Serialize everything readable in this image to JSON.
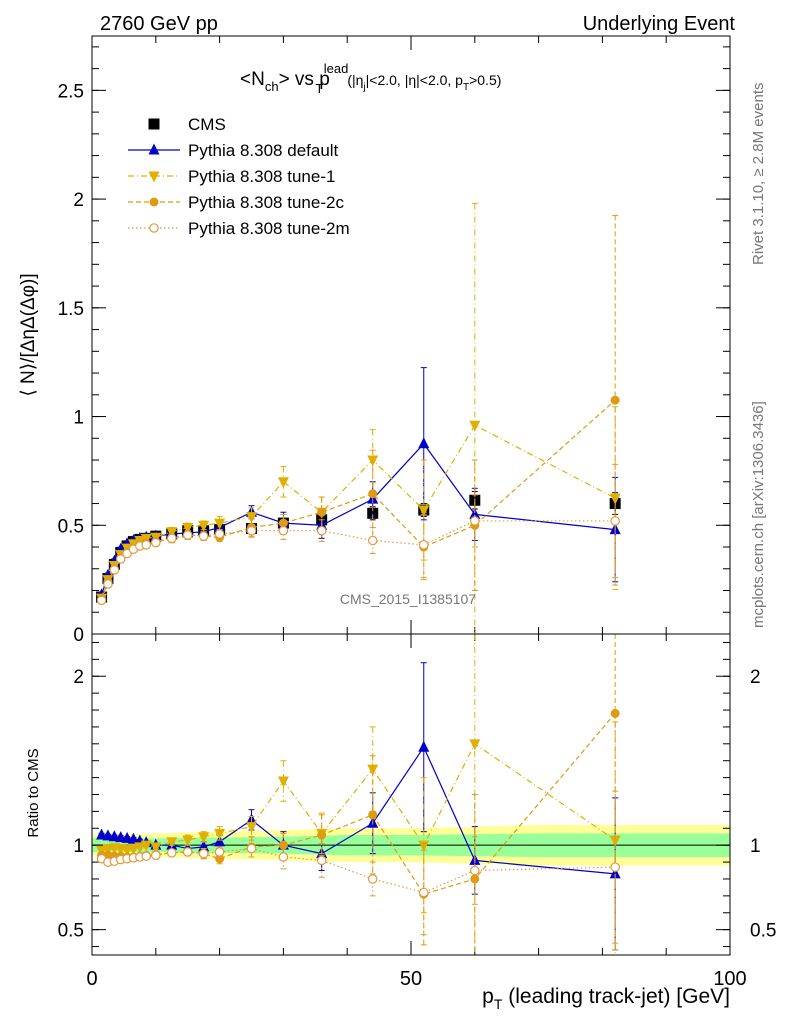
{
  "header": {
    "left": "2760 GeV pp",
    "right": "Underlying Event"
  },
  "side_labels": {
    "rivet": "Rivet 3.1.10, ≥ 2.8M events",
    "mcplots": "mcplots.cern.ch [arXiv:1306.3436]"
  },
  "watermark": "CMS_2015_I1385107",
  "colors": {
    "cms": "#000000",
    "default": "#0000cc",
    "tune1": "#e0b000",
    "tune2c": "#e09a10",
    "tune2m": "#e09a40",
    "band_inner": "#99ff99",
    "band_outer": "#ffff99"
  },
  "chart_data": [
    {
      "type": "scatter",
      "title_parts": {
        "main": "<N",
        "ch": "ch",
        "vs": "> vs p",
        "T": "T",
        "lead": "lead",
        "cuts_a": "(|η",
        "j": "j",
        "cuts_b": "|<2.0, |η|<2.0, p",
        "T2": "T",
        "cuts_c": ">0.5)"
      },
      "ylabel": "⟨ N⟩/[ΔηΔ(Δφ)]",
      "xlim": [
        0,
        100
      ],
      "ylim": [
        0,
        2.75
      ],
      "yticks": [
        {
          "v": 0,
          "label": "0"
        },
        {
          "v": 0.5,
          "label": "0.5"
        },
        {
          "v": 1,
          "label": "1"
        },
        {
          "v": 1.5,
          "label": "1.5"
        },
        {
          "v": 2,
          "label": "2"
        },
        {
          "v": 2.5,
          "label": "2.5"
        }
      ],
      "legend_position": "top-left",
      "series": [
        {
          "key": "cms",
          "name": "CMS",
          "marker": "square",
          "line": "none",
          "x": [
            1.5,
            2.5,
            3.5,
            4.5,
            5.5,
            6.5,
            7.5,
            8.5,
            10,
            12.5,
            15,
            17.5,
            20,
            25,
            30,
            36,
            44,
            52,
            60,
            82
          ],
          "y": [
            0.17,
            0.255,
            0.32,
            0.375,
            0.405,
            0.425,
            0.435,
            0.44,
            0.45,
            0.46,
            0.475,
            0.475,
            0.48,
            0.485,
            0.51,
            0.525,
            0.555,
            0.57,
            0.615,
            0.6
          ],
          "err": [
            0.01,
            0.01,
            0.01,
            0.01,
            0.01,
            0.01,
            0.01,
            0.01,
            0.01,
            0.01,
            0.01,
            0.01,
            0.01,
            0.02,
            0.02,
            0.02,
            0.03,
            0.03,
            0.04,
            0.05
          ]
        },
        {
          "key": "default",
          "name": "Pythia 8.308 default",
          "marker": "triangle-up",
          "line": "solid",
          "x": [
            1.5,
            2.5,
            3.5,
            4.5,
            5.5,
            6.5,
            7.5,
            8.5,
            10,
            12.5,
            15,
            17.5,
            20,
            25,
            30,
            36,
            44,
            52,
            60,
            82
          ],
          "y": [
            0.18,
            0.27,
            0.335,
            0.39,
            0.415,
            0.43,
            0.44,
            0.445,
            0.45,
            0.46,
            0.465,
            0.47,
            0.49,
            0.56,
            0.51,
            0.5,
            0.62,
            0.875,
            0.55,
            0.48
          ],
          "err": [
            0.01,
            0.01,
            0.01,
            0.01,
            0.01,
            0.01,
            0.01,
            0.01,
            0.01,
            0.01,
            0.02,
            0.02,
            0.02,
            0.03,
            0.05,
            0.06,
            0.08,
            0.35,
            0.12,
            0.24
          ]
        },
        {
          "key": "tune1",
          "name": "Pythia 8.308 tune-1",
          "marker": "triangle-down",
          "line": "dashdot",
          "x": [
            1.5,
            2.5,
            3.5,
            4.5,
            5.5,
            6.5,
            7.5,
            8.5,
            10,
            12.5,
            15,
            17.5,
            20,
            25,
            30,
            36,
            44,
            52,
            60,
            82
          ],
          "y": [
            0.165,
            0.25,
            0.315,
            0.365,
            0.395,
            0.415,
            0.43,
            0.44,
            0.445,
            0.47,
            0.49,
            0.5,
            0.51,
            0.54,
            0.7,
            0.56,
            0.8,
            0.57,
            0.96,
            0.625
          ],
          "err": [
            0.01,
            0.01,
            0.01,
            0.01,
            0.01,
            0.01,
            0.01,
            0.01,
            0.01,
            0.02,
            0.02,
            0.02,
            0.03,
            0.04,
            0.07,
            0.07,
            0.14,
            0.23,
            1.02,
            0.42
          ]
        },
        {
          "key": "tune2c",
          "name": "Pythia 8.308 tune-2c",
          "marker": "circle",
          "line": "dashed",
          "x": [
            1.5,
            2.5,
            3.5,
            4.5,
            5.5,
            6.5,
            7.5,
            8.5,
            10,
            12.5,
            15,
            17.5,
            20,
            25,
            30,
            36,
            44,
            52,
            60,
            82
          ],
          "y": [
            0.16,
            0.24,
            0.3,
            0.35,
            0.375,
            0.395,
            0.41,
            0.415,
            0.425,
            0.44,
            0.455,
            0.45,
            0.445,
            0.49,
            0.51,
            0.56,
            0.645,
            0.4,
            0.5,
            1.075
          ],
          "err": [
            0.01,
            0.01,
            0.01,
            0.01,
            0.01,
            0.01,
            0.01,
            0.01,
            0.01,
            0.02,
            0.02,
            0.02,
            0.02,
            0.04,
            0.04,
            0.07,
            0.2,
            0.15,
            0.3,
            0.85
          ]
        },
        {
          "key": "tune2m",
          "name": "Pythia 8.308 tune-2m",
          "marker": "circle-open",
          "line": "dotted",
          "x": [
            1.5,
            2.5,
            3.5,
            4.5,
            5.5,
            6.5,
            7.5,
            8.5,
            10,
            12.5,
            15,
            17.5,
            20,
            25,
            30,
            36,
            44,
            52,
            60,
            82
          ],
          "y": [
            0.155,
            0.23,
            0.295,
            0.345,
            0.37,
            0.39,
            0.405,
            0.41,
            0.42,
            0.44,
            0.455,
            0.45,
            0.46,
            0.475,
            0.475,
            0.475,
            0.43,
            0.41,
            0.52,
            0.52
          ],
          "err": [
            0.01,
            0.01,
            0.01,
            0.01,
            0.01,
            0.01,
            0.01,
            0.01,
            0.01,
            0.02,
            0.02,
            0.02,
            0.02,
            0.03,
            0.04,
            0.05,
            0.06,
            0.15,
            0.12,
            0.26
          ]
        }
      ]
    },
    {
      "type": "scatter",
      "ylabel": "Ratio to CMS",
      "xlabel_main": "p",
      "xlabel_sub": "T",
      "xlabel_rest": " (leading track-jet) [GeV]",
      "xlim": [
        0,
        100
      ],
      "ylim": [
        0.35,
        2.25
      ],
      "xticks": [
        {
          "v": 0,
          "label": "0"
        },
        {
          "v": 50,
          "label": "50"
        },
        {
          "v": 100,
          "label": "100"
        }
      ],
      "yticks": [
        {
          "v": 0.5,
          "label": "0.5"
        },
        {
          "v": 1,
          "label": "1"
        },
        {
          "v": 2,
          "label": "2"
        }
      ],
      "band": {
        "x": [
          0,
          10,
          20,
          30,
          40,
          50,
          60,
          70,
          80,
          90,
          100
        ],
        "inner": [
          0.04,
          0.04,
          0.045,
          0.05,
          0.06,
          0.06,
          0.065,
          0.07,
          0.07,
          0.07,
          0.07
        ],
        "outer": [
          0.06,
          0.07,
          0.08,
          0.09,
          0.1,
          0.1,
          0.11,
          0.12,
          0.12,
          0.12,
          0.12
        ]
      },
      "series": [
        {
          "key": "default",
          "x": [
            1.5,
            2.5,
            3.5,
            4.5,
            5.5,
            6.5,
            7.5,
            8.5,
            10,
            12.5,
            15,
            17.5,
            20,
            25,
            30,
            36,
            44,
            52,
            60,
            82
          ],
          "y": [
            1.06,
            1.055,
            1.05,
            1.045,
            1.04,
            1.035,
            1.025,
            1.015,
            1.0,
            1.0,
            0.98,
            0.99,
            1.02,
            1.15,
            1.0,
            0.95,
            1.13,
            1.58,
            0.91,
            0.83
          ],
          "err": [
            0.01,
            0.01,
            0.01,
            0.01,
            0.01,
            0.01,
            0.01,
            0.01,
            0.01,
            0.02,
            0.02,
            0.03,
            0.04,
            0.06,
            0.08,
            0.1,
            0.18,
            0.5,
            0.2,
            0.45
          ]
        },
        {
          "key": "tune1",
          "x": [
            1.5,
            2.5,
            3.5,
            4.5,
            5.5,
            6.5,
            7.5,
            8.5,
            10,
            12.5,
            15,
            17.5,
            20,
            25,
            30,
            36,
            44,
            52,
            60,
            82
          ],
          "y": [
            0.97,
            0.98,
            0.985,
            0.98,
            0.975,
            0.98,
            0.99,
            1.0,
            0.99,
            1.02,
            1.03,
            1.05,
            1.07,
            1.11,
            1.38,
            1.07,
            1.45,
            1.0,
            1.6,
            1.03
          ],
          "err": [
            0.01,
            0.01,
            0.01,
            0.01,
            0.01,
            0.01,
            0.01,
            0.01,
            0.01,
            0.02,
            0.03,
            0.03,
            0.04,
            0.06,
            0.12,
            0.12,
            0.25,
            0.4,
            1.6,
            0.7
          ]
        },
        {
          "key": "tune2c",
          "x": [
            1.5,
            2.5,
            3.5,
            4.5,
            5.5,
            6.5,
            7.5,
            8.5,
            10,
            12.5,
            15,
            17.5,
            20,
            25,
            30,
            36,
            44,
            52,
            60,
            82
          ],
          "y": [
            0.94,
            0.94,
            0.935,
            0.935,
            0.93,
            0.93,
            0.935,
            0.94,
            0.945,
            0.955,
            0.96,
            0.95,
            0.92,
            0.99,
            1.0,
            1.06,
            1.18,
            0.71,
            0.8,
            1.78
          ],
          "err": [
            0.01,
            0.01,
            0.01,
            0.01,
            0.01,
            0.01,
            0.01,
            0.01,
            0.01,
            0.02,
            0.02,
            0.03,
            0.03,
            0.06,
            0.07,
            0.12,
            0.35,
            0.3,
            0.5,
            1.4
          ]
        },
        {
          "key": "tune2m",
          "x": [
            1.5,
            2.5,
            3.5,
            4.5,
            5.5,
            6.5,
            7.5,
            8.5,
            10,
            12.5,
            15,
            17.5,
            20,
            25,
            30,
            36,
            44,
            52,
            60,
            82
          ],
          "y": [
            0.92,
            0.9,
            0.905,
            0.915,
            0.92,
            0.925,
            0.93,
            0.935,
            0.94,
            0.955,
            0.96,
            0.95,
            0.96,
            0.98,
            0.93,
            0.91,
            0.8,
            0.72,
            0.85,
            0.87
          ],
          "err": [
            0.01,
            0.01,
            0.01,
            0.01,
            0.01,
            0.01,
            0.01,
            0.01,
            0.01,
            0.02,
            0.02,
            0.03,
            0.03,
            0.05,
            0.07,
            0.1,
            0.1,
            0.25,
            0.2,
            0.45
          ]
        }
      ]
    }
  ]
}
